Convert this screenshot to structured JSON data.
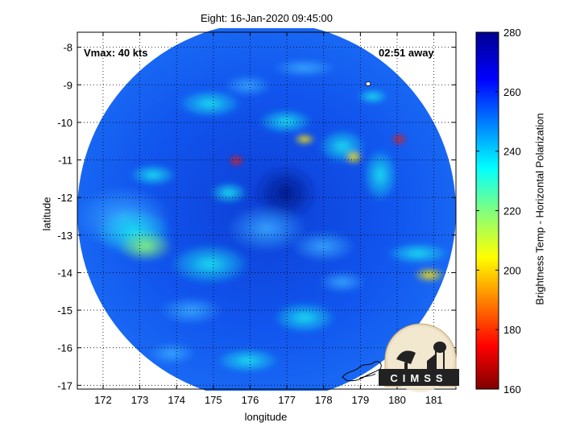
{
  "title": "Eight: 16-Jan-2020 09:45:00",
  "annotations": {
    "vmax": "Vmax: 40 kts",
    "time_away": "02:51 away"
  },
  "axes": {
    "xlabel": "longitude",
    "ylabel": "latitude",
    "xlim": [
      171.3,
      181.6
    ],
    "ylim": [
      -17.1,
      -7.6
    ],
    "xticks": [
      "172",
      "173",
      "174",
      "175",
      "176",
      "177",
      "178",
      "179",
      "180",
      "181"
    ],
    "xtick_values": [
      172,
      173,
      174,
      175,
      176,
      177,
      178,
      179,
      180,
      181
    ],
    "yticks": [
      "-8",
      "-9",
      "-10",
      "-11",
      "-12",
      "-13",
      "-14",
      "-15",
      "-16",
      "-17"
    ],
    "ytick_values": [
      -8,
      -9,
      -10,
      -11,
      -12,
      -13,
      -14,
      -15,
      -16,
      -17
    ],
    "grid": "dotted"
  },
  "colorbar": {
    "label": "Brightness Temp - Horizontal Polarization",
    "range": [
      160,
      280
    ],
    "ticks": [
      "280",
      "260",
      "240",
      "220",
      "200",
      "180",
      "160"
    ],
    "tick_values": [
      280,
      260,
      240,
      220,
      200,
      180,
      160
    ],
    "colormap": "jet"
  },
  "logo": {
    "text": "CIMSS"
  },
  "swath": {
    "center": [
      176.45,
      -12.37
    ],
    "radius_lon": 5.15
  }
}
